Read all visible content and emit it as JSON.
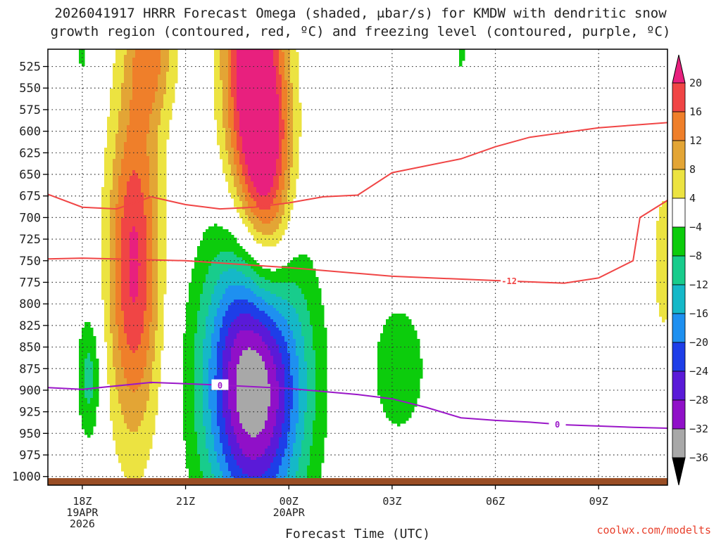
{
  "title_line1": "2026041917 HRRR Forecast Omega (shaded, μbar/s) for KMDW with dendritic snow",
  "title_line2": "growth region (contoured, red, ºC) and freezing level (contoured, purple, ºC)",
  "credit": "coolwx.com/modelts",
  "chart_data": {
    "type": "heatmap",
    "xlabel": "Forecast Time (UTC)",
    "x_ticks": [
      {
        "t": 0,
        "lines": [
          "18Z",
          "19APR",
          "2026"
        ]
      },
      {
        "t": 3,
        "lines": [
          "21Z"
        ]
      },
      {
        "t": 6,
        "lines": [
          "00Z",
          "20APR"
        ]
      },
      {
        "t": 9,
        "lines": [
          "03Z"
        ]
      },
      {
        "t": 12,
        "lines": [
          "06Z"
        ]
      },
      {
        "t": 15,
        "lines": [
          "09Z"
        ]
      }
    ],
    "x_range_hours": [
      -1,
      17
    ],
    "y_ticks": [
      525,
      550,
      575,
      600,
      625,
      650,
      675,
      700,
      725,
      750,
      775,
      800,
      825,
      850,
      875,
      900,
      925,
      950,
      975,
      1000
    ],
    "y_range_hPa": [
      505,
      1010
    ],
    "colorbar": {
      "labels": [
        "20",
        "16",
        "12",
        "8",
        "4",
        "−4",
        "−8",
        "−12",
        "−16",
        "−20",
        "−24",
        "−28",
        "−32",
        "−36"
      ],
      "top_arrow_color": "#e8207e",
      "bottom_arrow_color": "#000000",
      "bins": [
        {
          "from": 20,
          "to": 16,
          "color": "#f04545"
        },
        {
          "from": 16,
          "to": 12,
          "color": "#ef7f2a"
        },
        {
          "from": 12,
          "to": 8,
          "color": "#e3a535"
        },
        {
          "from": 8,
          "to": 4,
          "color": "#ece341"
        },
        {
          "from": 4,
          "to": -4,
          "color": "#ffffff"
        },
        {
          "from": -4,
          "to": -8,
          "color": "#0ccc0c"
        },
        {
          "from": -8,
          "to": -12,
          "color": "#18cc8c"
        },
        {
          "from": -12,
          "to": -16,
          "color": "#15b8c8"
        },
        {
          "from": -16,
          "to": -20,
          "color": "#1e90f0"
        },
        {
          "from": -20,
          "to": -24,
          "color": "#1e3ee8"
        },
        {
          "from": -24,
          "to": -28,
          "color": "#5a1ad8"
        },
        {
          "from": -28,
          "to": -32,
          "color": "#9010c8"
        },
        {
          "from": -32,
          "to": -36,
          "color": "#a8a8a8"
        }
      ]
    },
    "omega_features": [
      {
        "t": 0.2,
        "p": 885,
        "value": -10,
        "rt": 0.45,
        "rp": 95
      },
      {
        "t": 1.5,
        "p": 755,
        "value": 21,
        "rt": 0.95,
        "rp": 250
      },
      {
        "t": 2.0,
        "p": 505,
        "value": 12,
        "rt": 0.9,
        "rp": 110
      },
      {
        "t": 4.8,
        "p": 525,
        "value": 20,
        "rt": 1.0,
        "rp": 230
      },
      {
        "t": 5.4,
        "p": 640,
        "value": 21,
        "rt": 0.95,
        "rp": 220
      },
      {
        "t": 5.0,
        "p": 890,
        "value": -38,
        "rt": 1.8,
        "rp": 210
      },
      {
        "t": 9.2,
        "p": 875,
        "value": -7,
        "rt": 1.1,
        "rp": 110
      },
      {
        "t": 0.0,
        "p": 510,
        "value": -5,
        "rt": 0.3,
        "rp": 40
      },
      {
        "t": 11.0,
        "p": 510,
        "value": -5,
        "rt": 0.25,
        "rp": 35
      },
      {
        "t": 16.9,
        "p": 750,
        "value": 6,
        "rt": 0.5,
        "rp": 140
      }
    ],
    "contours": [
      {
        "label": "-12",
        "color": "#f04545",
        "points": [
          [
            -1,
            673
          ],
          [
            0,
            688
          ],
          [
            1,
            690
          ],
          [
            2,
            676
          ],
          [
            3,
            685
          ],
          [
            4,
            690
          ],
          [
            5,
            688
          ],
          [
            6,
            683
          ],
          [
            7,
            676
          ],
          [
            8,
            674
          ],
          [
            9,
            648
          ],
          [
            11,
            632
          ],
          [
            12,
            618
          ],
          [
            13,
            607
          ],
          [
            15,
            596
          ],
          [
            17,
            590
          ]
        ]
      },
      {
        "label": "-12",
        "color": "#f04545",
        "points": [
          [
            -1,
            748
          ],
          [
            0,
            747
          ],
          [
            3,
            750
          ],
          [
            6,
            758
          ],
          [
            9,
            768
          ],
          [
            12,
            773
          ],
          [
            14,
            776
          ],
          [
            15,
            770
          ],
          [
            16,
            750
          ],
          [
            16.2,
            700
          ],
          [
            17,
            680
          ]
        ]
      },
      {
        "label": "0",
        "color": "#9a16c8",
        "points": [
          [
            -1,
            897
          ],
          [
            0,
            899
          ],
          [
            2,
            891
          ],
          [
            4,
            894
          ],
          [
            6,
            898
          ],
          [
            8,
            905
          ],
          [
            9,
            910
          ],
          [
            10,
            920
          ],
          [
            11,
            932
          ],
          [
            12,
            935
          ],
          [
            13,
            937
          ],
          [
            14,
            940
          ],
          [
            16,
            943
          ],
          [
            17,
            944
          ]
        ]
      }
    ]
  }
}
